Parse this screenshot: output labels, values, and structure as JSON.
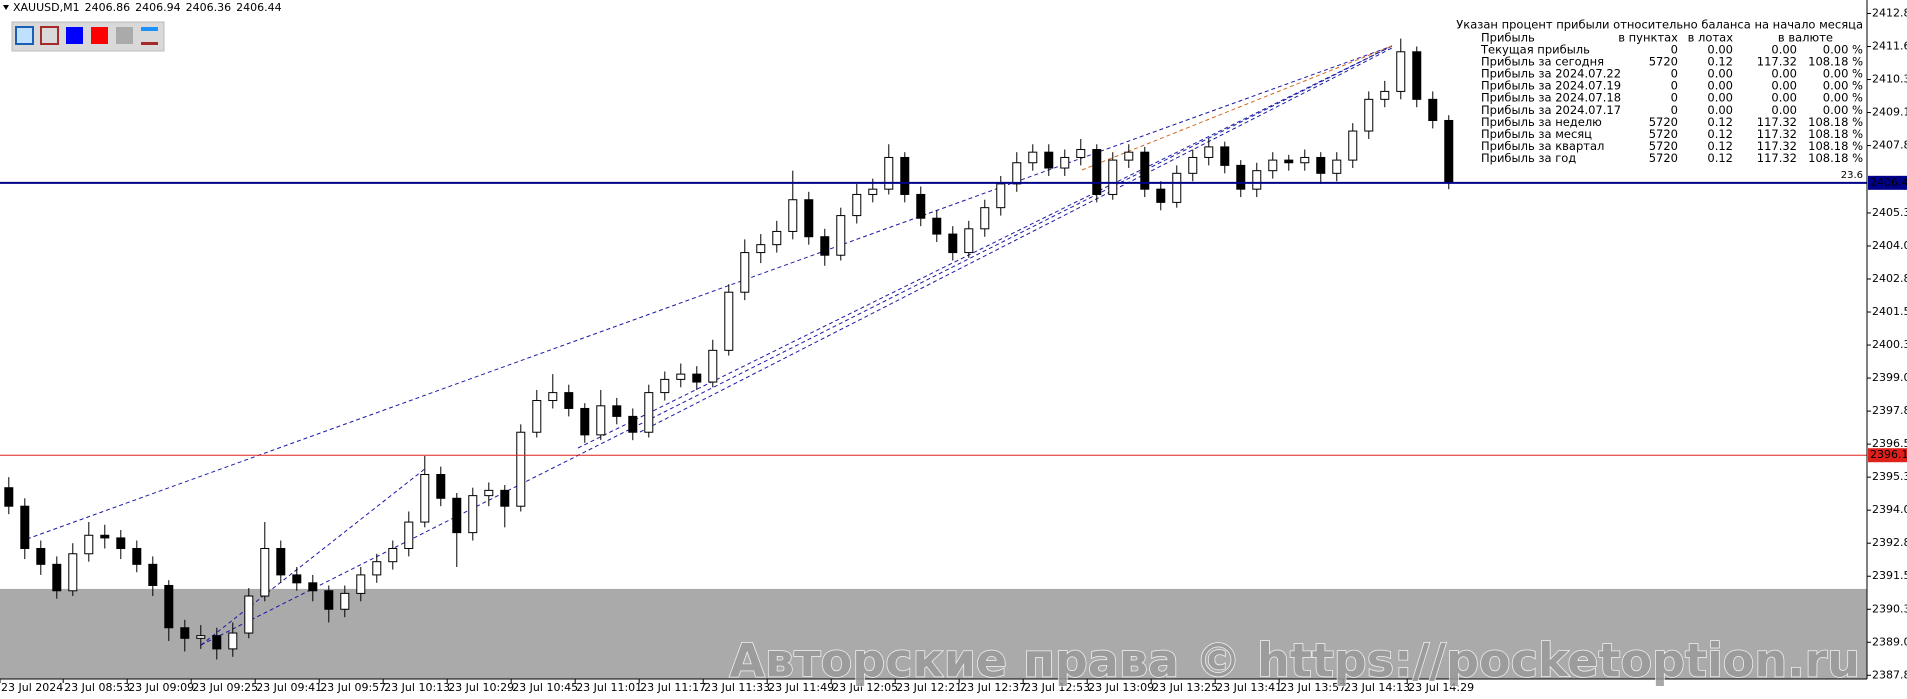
{
  "chart_data": {
    "type": "candlestick",
    "title": "XAUUSD,M1",
    "ohlc": [
      2406.86,
      2406.94,
      2406.36,
      2406.44
    ],
    "open": [
      2394.9,
      2394.2,
      2392.6,
      2392.0,
      2391.0,
      2392.4,
      2393.1,
      2393.0,
      2392.6,
      2392.0,
      2391.2,
      2389.6,
      2389.2,
      2389.3,
      2388.8,
      2389.4,
      2390.8,
      2392.6,
      2391.6,
      2391.3,
      2391.0,
      2390.3,
      2390.9,
      2391.6,
      2392.1,
      2392.6,
      2393.6,
      2395.4,
      2394.5,
      2393.2,
      2394.6,
      2394.8,
      2394.2,
      2397.0,
      2398.2,
      2398.5,
      2397.9,
      2396.9,
      2398.0,
      2397.6,
      2397.0,
      2398.5,
      2399.0,
      2399.2,
      2398.9,
      2400.1,
      2402.3,
      2403.8,
      2404.1,
      2404.6,
      2405.8,
      2404.4,
      2403.7,
      2405.2,
      2406.0,
      2406.2,
      2407.4,
      2406.0,
      2405.1,
      2404.5,
      2403.8,
      2404.7,
      2405.5,
      2406.4,
      2407.2,
      2407.6,
      2407.0,
      2407.4,
      2407.7,
      2406.0,
      2407.3,
      2407.6,
      2406.2,
      2405.7,
      2406.8,
      2407.4,
      2407.8,
      2407.1,
      2406.2,
      2406.9,
      2407.3,
      2407.2,
      2407.4,
      2406.8,
      2407.3,
      2408.4,
      2409.6,
      2409.9,
      2411.4,
      2409.6,
      2408.8
    ],
    "high": [
      2395.3,
      2394.5,
      2392.9,
      2392.3,
      2392.8,
      2393.6,
      2393.5,
      2393.3,
      2392.9,
      2392.3,
      2391.4,
      2389.9,
      2389.7,
      2389.6,
      2389.8,
      2391.1,
      2393.6,
      2392.9,
      2391.9,
      2391.6,
      2391.2,
      2391.2,
      2391.9,
      2392.4,
      2392.9,
      2394.0,
      2396.1,
      2395.7,
      2394.7,
      2394.9,
      2395.1,
      2395.0,
      2397.3,
      2398.6,
      2399.2,
      2398.8,
      2398.1,
      2398.6,
      2398.3,
      2397.9,
      2398.8,
      2399.3,
      2399.6,
      2399.5,
      2400.5,
      2402.6,
      2404.3,
      2404.5,
      2405.0,
      2406.9,
      2406.1,
      2404.7,
      2405.5,
      2406.4,
      2406.6,
      2407.9,
      2407.6,
      2406.3,
      2405.4,
      2404.8,
      2405.0,
      2405.8,
      2406.7,
      2407.6,
      2407.9,
      2407.9,
      2407.7,
      2408.1,
      2407.9,
      2407.6,
      2407.9,
      2407.8,
      2406.5,
      2407.1,
      2407.7,
      2408.1,
      2408.0,
      2407.3,
      2407.2,
      2407.6,
      2407.5,
      2407.7,
      2407.6,
      2407.6,
      2408.7,
      2409.9,
      2410.3,
      2411.9,
      2411.6,
      2409.9,
      2409.0
    ],
    "low": [
      2393.9,
      2392.2,
      2391.6,
      2390.7,
      2390.8,
      2392.1,
      2392.6,
      2392.2,
      2391.7,
      2390.8,
      2389.1,
      2388.7,
      2388.8,
      2388.4,
      2388.5,
      2389.2,
      2390.6,
      2391.3,
      2391.0,
      2390.6,
      2389.8,
      2390.0,
      2390.6,
      2391.3,
      2391.8,
      2392.3,
      2393.4,
      2394.2,
      2391.9,
      2392.9,
      2394.2,
      2393.4,
      2394.0,
      2396.8,
      2397.9,
      2397.6,
      2396.6,
      2396.7,
      2397.3,
      2396.7,
      2396.8,
      2398.2,
      2398.7,
      2398.6,
      2398.7,
      2399.9,
      2402.0,
      2403.4,
      2403.8,
      2404.3,
      2404.1,
      2403.3,
      2403.5,
      2404.9,
      2405.7,
      2406.0,
      2405.7,
      2404.8,
      2404.2,
      2403.5,
      2403.6,
      2404.4,
      2405.2,
      2406.1,
      2406.9,
      2406.7,
      2406.7,
      2407.1,
      2405.7,
      2405.8,
      2407.0,
      2405.9,
      2405.4,
      2405.5,
      2406.5,
      2407.1,
      2406.8,
      2405.9,
      2405.9,
      2406.6,
      2406.9,
      2406.9,
      2406.4,
      2406.5,
      2407.0,
      2408.1,
      2409.3,
      2409.6,
      2409.3,
      2408.5,
      2406.2
    ],
    "close": [
      2394.2,
      2392.6,
      2392.0,
      2391.0,
      2392.4,
      2393.1,
      2393.0,
      2392.6,
      2392.0,
      2391.2,
      2389.6,
      2389.2,
      2389.3,
      2388.8,
      2389.4,
      2390.8,
      2392.6,
      2391.6,
      2391.3,
      2391.0,
      2390.3,
      2390.9,
      2391.6,
      2392.1,
      2392.6,
      2393.6,
      2395.4,
      2394.5,
      2393.2,
      2394.6,
      2394.8,
      2394.2,
      2397.0,
      2398.2,
      2398.5,
      2397.9,
      2396.9,
      2398.0,
      2397.6,
      2397.0,
      2398.5,
      2399.0,
      2399.2,
      2398.9,
      2400.1,
      2402.3,
      2403.8,
      2404.1,
      2404.6,
      2405.8,
      2404.4,
      2403.7,
      2405.2,
      2406.0,
      2406.2,
      2407.4,
      2406.0,
      2405.1,
      2404.5,
      2403.8,
      2404.7,
      2405.5,
      2406.4,
      2407.2,
      2407.6,
      2407.0,
      2407.4,
      2407.7,
      2406.0,
      2407.3,
      2407.6,
      2406.2,
      2405.7,
      2406.8,
      2407.4,
      2407.8,
      2407.1,
      2406.2,
      2406.9,
      2407.3,
      2407.2,
      2407.4,
      2406.8,
      2407.3,
      2408.4,
      2409.6,
      2409.9,
      2411.4,
      2409.6,
      2408.8,
      2406.44
    ],
    "xlim": [
      -0.3,
      116.39
    ],
    "xticks": [
      {
        "value": -0.3,
        "label": "23 Jul 2024"
      },
      {
        "value": 3.65,
        "label": "23 Jul 08:53"
      },
      {
        "value": 7.65,
        "label": "23 Jul 09:09"
      },
      {
        "value": 11.65,
        "label": "23 Jul 09:25"
      },
      {
        "value": 15.65,
        "label": "23 Jul 09:41"
      },
      {
        "value": 19.65,
        "label": "23 Jul 09:57"
      },
      {
        "value": 23.65,
        "label": "23 Jul 10:13"
      },
      {
        "value": 27.65,
        "label": "23 Jul 10:29"
      },
      {
        "value": 31.65,
        "label": "23 Jul 10:45"
      },
      {
        "value": 35.65,
        "label": "23 Jul 11:01"
      },
      {
        "value": 39.65,
        "label": "23 Jul 11:17"
      },
      {
        "value": 43.65,
        "label": "23 Jul 11:33"
      },
      {
        "value": 47.65,
        "label": "23 Jul 11:49"
      },
      {
        "value": 51.65,
        "label": "23 Jul 12:05"
      },
      {
        "value": 55.65,
        "label": "23 Jul 12:21"
      },
      {
        "value": 59.65,
        "label": "23 Jul 12:37"
      },
      {
        "value": 63.65,
        "label": "23 Jul 12:53"
      },
      {
        "value": 67.65,
        "label": "23 Jul 13:09"
      },
      {
        "value": 71.65,
        "label": "23 Jul 13:25"
      },
      {
        "value": 75.65,
        "label": "23 Jul 13:41"
      },
      {
        "value": 79.65,
        "label": "23 Jul 13:57"
      },
      {
        "value": 83.65,
        "label": "23 Jul 14:13"
      },
      {
        "value": 87.65,
        "label": "23 Jul 14:29"
      }
    ],
    "ylim": [
      2387.66,
      2413.36
    ],
    "yticks": [
      2412.85,
      {
        "value": 2411.6,
        "label": "2411.60"
      },
      2410.35,
      {
        "value": 2409.1,
        "label": "2409.10"
      },
      2407.85,
      {
        "value": 2405.3,
        "label": "2405.30"
      },
      2404.05,
      {
        "value": 2402.8,
        "label": "2402.80"
      },
      2401.55,
      {
        "value": 2400.3,
        "label": "2400.30"
      },
      2399.05,
      {
        "value": 2397.8,
        "label": "2397.80"
      },
      2396.55,
      {
        "value": 2395.3,
        "label": "2395.30"
      },
      2394.05,
      {
        "value": 2392.8,
        "label": "2392.80"
      },
      2391.55,
      {
        "value": 2390.3,
        "label": "2390.30"
      },
      2389.05,
      {
        "value": 2387.8,
        "label": "2387.80"
      }
    ],
    "levels": [
      {
        "value": 2406.44,
        "color": "#00008b",
        "note": 23.6
      },
      {
        "value": 2396.13,
        "color": "#e0201b"
      }
    ],
    "zone": {
      "from": 2391.07,
      "color": "#aaaaaa"
    },
    "up_color": "#ffffff",
    "down_color": "#000000"
  },
  "info_panel": {
    "heading": "Указан процент прибыли относительно баланса на начало месяца",
    "columns": [
      "Прибыль",
      "в пунктах",
      "в лотах",
      "в валюте"
    ],
    "rows": [
      [
        "Текущая прибыль",
        "0",
        "0.00",
        "0.00",
        "0.00 %"
      ],
      [
        "Прибыль за сегодня",
        "5720",
        "0.12",
        "117.32",
        "108.18 %"
      ],
      [
        "Прибыль за 2024.07.22",
        "0",
        "0.00",
        "0.00",
        "0.00 %"
      ],
      [
        "Прибыль за 2024.07.19",
        "0",
        "0.00",
        "0.00",
        "0.00 %"
      ],
      [
        "Прибыль за 2024.07.18",
        "0",
        "0.00",
        "0.00",
        "0.00 %"
      ],
      [
        "Прибыль за 2024.07.17",
        "0",
        "0.00",
        "0.00",
        "0.00 %"
      ],
      [
        "Прибыль за неделю",
        "5720",
        "0.12",
        "117.32",
        "108.18 %"
      ],
      [
        "Прибыль за месяц",
        "5720",
        "0.12",
        "117.32",
        "108.18 %"
      ],
      [
        "Прибыль за квартал",
        "5720",
        "0.12",
        "117.32",
        "108.18 %"
      ],
      [
        "Прибыль за год",
        "5720",
        "0.12",
        "117.32",
        "108.18 %"
      ]
    ]
  },
  "watermark": "Авторские права © https://pocketoption.ru"
}
